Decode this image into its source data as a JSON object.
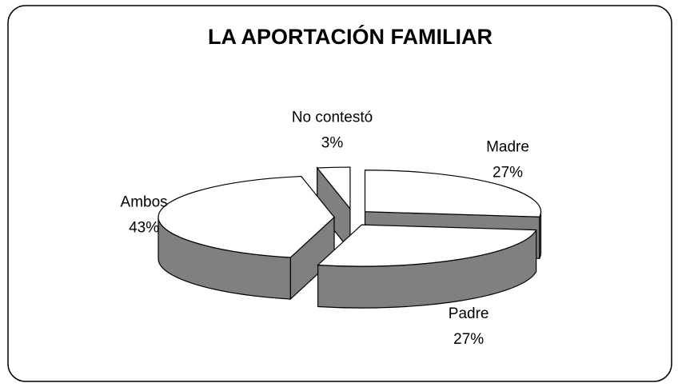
{
  "chart_data": {
    "type": "pie3d",
    "title": "LA APORTACIÓN FAMILIAR",
    "categories": [
      "Madre",
      "Padre",
      "Ambos",
      "No contestó"
    ],
    "values": [
      27,
      27,
      43,
      3
    ],
    "value_labels": [
      "27%",
      "27%",
      "43%",
      "3%"
    ],
    "color": "#ffffff",
    "side_color": "#808080"
  }
}
